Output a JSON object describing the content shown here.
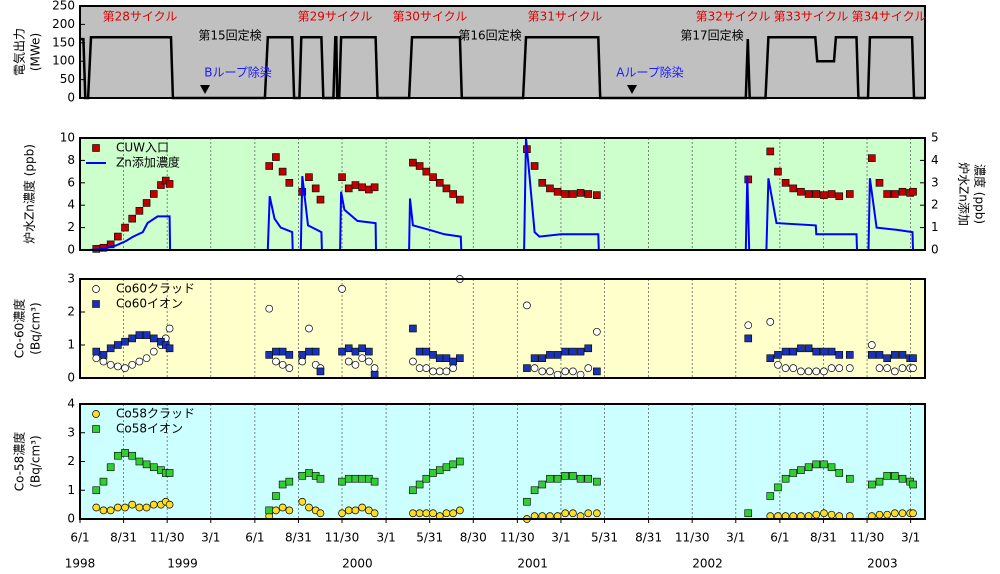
{
  "chart_data": [
    {
      "type": "line",
      "background": "#c0c0c0",
      "ylabel": [
        "電気出力",
        "(MWe)"
      ],
      "ylim": [
        0,
        250
      ],
      "yticks": [
        0,
        50,
        100,
        150,
        200,
        250
      ],
      "xlim": [
        "1998-06-01",
        "2003-03-31"
      ],
      "annotations": {
        "cycles": [
          "第28サイクル",
          "第29サイクル",
          "第30サイクル",
          "第31サイクル",
          "第32サイクル",
          "第33サイクル",
          "第34サイクル"
        ],
        "inspections": [
          "第15回定検",
          "第16回定検",
          "第17回定検"
        ],
        "decontamination": [
          "Bループ除染",
          "Aループ除染"
        ]
      },
      "x": [
        "1998-06-01",
        "1998-06-08",
        "1998-06-12",
        "1998-06-18",
        "1998-06-24",
        "1998-12-08",
        "1998-12-12",
        "1999-06-22",
        "1999-06-28",
        "1999-08-18",
        "1999-08-22",
        "1999-09-02",
        "1999-09-06",
        "1999-10-18",
        "1999-10-22",
        "1999-11-12",
        "1999-11-16",
        "1999-11-18",
        "1999-11-20",
        "1999-11-24",
        "1999-11-28",
        "2000-02-08",
        "2000-02-12",
        "2000-04-18",
        "2000-04-24",
        "2000-08-02",
        "2000-08-06",
        "2000-12-12",
        "2000-12-18",
        "2001-05-18",
        "2001-05-22",
        "2002-03-22",
        "2002-03-26",
        "2002-03-30",
        "2002-05-02",
        "2002-05-08",
        "2002-08-14",
        "2002-08-18",
        "2002-09-22",
        "2002-09-26",
        "2002-11-08",
        "2002-11-12",
        "2002-12-02",
        "2002-12-06",
        "2003-03-04",
        "2003-03-08",
        "2003-03-31"
      ],
      "series": [
        {
          "name": "電気出力",
          "color": "#000000",
          "marker": "line",
          "values": [
            160,
            160,
            0,
            0,
            165,
            165,
            0,
            0,
            165,
            165,
            0,
            0,
            165,
            165,
            0,
            0,
            165,
            165,
            0,
            0,
            165,
            165,
            0,
            0,
            165,
            165,
            0,
            0,
            165,
            165,
            0,
            0,
            160,
            0,
            0,
            165,
            165,
            100,
            100,
            165,
            165,
            0,
            0,
            165,
            165,
            0,
            0
          ]
        }
      ]
    },
    {
      "type": "scatter",
      "background": "#ccffcc",
      "ylabel": [
        "炉水Zn濃度 (ppb)"
      ],
      "y2label": [
        "炉水Zn添加",
        "濃度 (ppb)"
      ],
      "ylim": [
        0,
        10
      ],
      "yticks": [
        0,
        2,
        4,
        6,
        8,
        10
      ],
      "y2lim": [
        0,
        5
      ],
      "y2ticks": [
        0,
        1,
        2,
        3,
        4,
        5
      ],
      "xlim": [
        "1998-06-01",
        "2003-03-31"
      ],
      "grid": true,
      "legend": "upper left",
      "x": [
        "1998-07-05",
        "1998-07-20",
        "1998-08-04",
        "1998-08-19",
        "1998-09-03",
        "1998-09-18",
        "1998-10-03",
        "1998-10-18",
        "1998-11-02",
        "1998-11-17",
        "1998-11-27",
        "1998-12-05",
        "1999-07-01",
        "1999-07-15",
        "1999-07-29",
        "1999-08-12",
        "1999-09-08",
        "1999-09-22",
        "1999-10-06",
        "1999-10-16",
        "1999-11-30",
        "1999-12-14",
        "1999-12-28",
        "2000-01-11",
        "2000-01-25",
        "2000-02-06",
        "2000-04-26",
        "2000-05-10",
        "2000-05-24",
        "2000-06-07",
        "2000-06-21",
        "2000-07-05",
        "2000-07-19",
        "2000-08-02",
        "2000-12-20",
        "2001-01-05",
        "2001-01-21",
        "2001-02-06",
        "2001-02-22",
        "2001-03-10",
        "2001-03-26",
        "2001-04-11",
        "2001-04-27",
        "2001-05-15",
        "2002-03-27",
        "2002-05-12",
        "2002-05-28",
        "2002-06-13",
        "2002-06-29",
        "2002-07-15",
        "2002-07-31",
        "2002-08-16",
        "2002-09-01",
        "2002-09-17",
        "2002-10-03",
        "2002-10-25",
        "2002-12-10",
        "2002-12-26",
        "2003-01-11",
        "2003-01-27",
        "2003-02-12",
        "2003-02-28",
        "2003-03-06"
      ],
      "series": [
        {
          "name": "CUW入口",
          "color": "#c00000",
          "marker": "square",
          "values": [
            0.1,
            0.2,
            0.5,
            1.2,
            2.0,
            2.8,
            3.5,
            4.2,
            5.0,
            5.8,
            6.2,
            5.9,
            7.5,
            8.3,
            7.0,
            6.0,
            5.2,
            6.5,
            5.5,
            4.5,
            6.5,
            5.5,
            5.8,
            5.6,
            5.4,
            5.6,
            7.8,
            7.5,
            7.0,
            6.5,
            6.0,
            5.5,
            5.0,
            4.5,
            9.0,
            7.5,
            6.0,
            5.5,
            5.2,
            5.0,
            5.0,
            5.1,
            5.0,
            4.9,
            6.3,
            8.8,
            7.0,
            6.0,
            5.5,
            5.2,
            5.0,
            5.0,
            4.9,
            5.0,
            4.8,
            5.0,
            8.2,
            6.0,
            5.0,
            5.0,
            5.2,
            5.1,
            5.2
          ]
        },
        {
          "name": "Zn添加濃度",
          "color": "#0000ff",
          "marker": "line",
          "axis": "y2",
          "x": [
            "1998-06-20",
            "1998-07-20",
            "1998-08-15",
            "1998-09-05",
            "1998-09-20",
            "1998-10-10",
            "1998-10-20",
            "1998-11-10",
            "1998-12-05",
            "1998-12-06",
            "1999-06-28",
            "1999-07-02",
            "1999-07-12",
            "1999-07-25",
            "1999-08-18",
            "1999-08-19",
            "1999-09-05",
            "1999-09-08",
            "1999-09-20",
            "1999-10-18",
            "1999-10-19",
            "1999-11-26",
            "1999-11-28",
            "1999-12-05",
            "2000-01-01",
            "2000-02-08",
            "2000-02-09",
            "2000-04-18",
            "2000-04-20",
            "2000-04-26",
            "2000-05-30",
            "2000-07-01",
            "2000-08-04",
            "2000-08-05",
            "2000-12-14",
            "2000-12-18",
            "2001-01-05",
            "2001-01-15",
            "2001-03-01",
            "2001-05-18",
            "2001-05-19",
            "2002-03-22",
            "2002-03-25",
            "2002-03-29",
            "2002-05-04",
            "2002-05-08",
            "2002-05-25",
            "2002-08-15",
            "2002-08-16",
            "2002-11-08",
            "2002-11-09",
            "2002-12-03",
            "2002-12-06",
            "2002-12-20",
            "2003-01-30",
            "2003-03-05",
            "2003-03-06"
          ],
          "values": [
            0,
            0.05,
            0.2,
            0.4,
            0.6,
            0.8,
            1.2,
            1.5,
            1.5,
            0,
            0,
            2.4,
            1.4,
            1.0,
            0.8,
            0,
            0,
            3.3,
            1.1,
            0.8,
            0,
            0,
            2.6,
            1.8,
            1.3,
            1.2,
            0,
            0,
            2.3,
            1.1,
            0.9,
            0.7,
            0.6,
            0,
            0,
            5.0,
            0.8,
            0.6,
            0.7,
            0.7,
            0,
            0,
            3.3,
            0,
            0,
            3.2,
            1.2,
            1.1,
            0.7,
            0.7,
            0,
            0,
            3.2,
            1.0,
            0.9,
            0.8,
            0
          ]
        }
      ]
    },
    {
      "type": "scatter",
      "background": "#ffffcc",
      "ylabel": [
        "Co-60濃度",
        "(Bq/cm³)"
      ],
      "ylim": [
        0,
        3
      ],
      "yticks": [
        0,
        1,
        2,
        3
      ],
      "xlim": [
        "1998-06-01",
        "2003-03-31"
      ],
      "grid": true,
      "legend": "upper left",
      "x": [
        "1998-07-05",
        "1998-07-20",
        "1998-08-04",
        "1998-08-19",
        "1998-09-03",
        "1998-09-18",
        "1998-10-03",
        "1998-10-18",
        "1998-11-02",
        "1998-11-17",
        "1998-11-27",
        "1998-12-05",
        "1999-07-01",
        "1999-07-15",
        "1999-07-29",
        "1999-08-12",
        "1999-09-08",
        "1999-09-22",
        "1999-10-06",
        "1999-10-16",
        "1999-11-30",
        "1999-12-14",
        "1999-12-28",
        "2000-01-11",
        "2000-01-25",
        "2000-02-06",
        "2000-04-26",
        "2000-05-10",
        "2000-05-24",
        "2000-06-07",
        "2000-06-21",
        "2000-07-05",
        "2000-07-19",
        "2000-08-02",
        "2000-12-20",
        "2001-01-05",
        "2001-01-21",
        "2001-02-06",
        "2001-02-22",
        "2001-03-10",
        "2001-03-26",
        "2001-04-11",
        "2001-04-27",
        "2001-05-15",
        "2002-03-27",
        "2002-05-12",
        "2002-05-28",
        "2002-06-13",
        "2002-06-29",
        "2002-07-15",
        "2002-07-31",
        "2002-08-16",
        "2002-09-01",
        "2002-09-17",
        "2002-10-03",
        "2002-10-25",
        "2002-12-10",
        "2002-12-26",
        "2003-01-11",
        "2003-01-27",
        "2003-02-12",
        "2003-02-28",
        "2003-03-06"
      ],
      "series": [
        {
          "name": "Co60クラッド",
          "color": "#ffffff",
          "marker": "circle",
          "values": [
            0.6,
            0.5,
            0.4,
            0.35,
            0.3,
            0.4,
            0.5,
            0.6,
            0.8,
            1.0,
            1.2,
            1.5,
            2.1,
            0.5,
            0.4,
            0.3,
            0.5,
            1.5,
            0.4,
            0.3,
            2.7,
            0.5,
            0.4,
            0.6,
            0.5,
            0.3,
            0.5,
            0.3,
            0.3,
            0.2,
            0.2,
            0.2,
            0.3,
            3.0,
            2.2,
            0.3,
            0.2,
            0.2,
            0.1,
            0.2,
            0.2,
            0.1,
            0.3,
            1.4,
            1.6,
            1.7,
            0.4,
            0.3,
            0.3,
            0.2,
            0.2,
            0.2,
            0.2,
            0.3,
            0.3,
            0.3,
            1.0,
            0.3,
            0.3,
            0.2,
            0.3,
            0.3,
            0.3
          ]
        },
        {
          "name": "Co60イオン",
          "color": "#1a33b3",
          "marker": "square",
          "values": [
            0.8,
            0.7,
            0.9,
            1.0,
            1.1,
            1.2,
            1.3,
            1.3,
            1.2,
            1.1,
            1.0,
            0.9,
            0.7,
            0.8,
            0.8,
            0.7,
            0.7,
            0.8,
            0.8,
            0.2,
            0.8,
            0.9,
            0.8,
            0.9,
            0.8,
            0.1,
            1.5,
            0.8,
            0.8,
            0.7,
            0.6,
            0.6,
            0.5,
            0.6,
            0.3,
            0.6,
            0.6,
            0.7,
            0.7,
            0.8,
            0.8,
            0.8,
            0.9,
            0.2,
            1.2,
            0.6,
            0.7,
            0.8,
            0.8,
            0.9,
            0.9,
            0.8,
            0.8,
            0.8,
            0.7,
            0.7,
            0.7,
            0.7,
            0.6,
            0.7,
            0.7,
            0.6,
            0.6
          ]
        }
      ]
    },
    {
      "type": "scatter",
      "background": "#ccffff",
      "ylabel": [
        "Co-58濃度",
        "(Bq/cm³)"
      ],
      "ylim": [
        0,
        4
      ],
      "yticks": [
        0,
        1,
        2,
        3,
        4
      ],
      "xlim": [
        "1998-06-01",
        "2003-03-31"
      ],
      "grid": true,
      "legend": "upper left",
      "xticks": [
        {
          "value": "1998-06-01",
          "label": "6/1"
        },
        {
          "value": "1998-08-31",
          "label": "8/31"
        },
        {
          "value": "1998-11-30",
          "label": "11/30"
        },
        {
          "value": "1999-03-01",
          "label": "3/1"
        },
        {
          "value": "1999-06-01",
          "label": "6/1"
        },
        {
          "value": "1999-08-31",
          "label": "8/31"
        },
        {
          "value": "1999-11-30",
          "label": "11/30"
        },
        {
          "value": "2000-03-01",
          "label": "3/1"
        },
        {
          "value": "2000-05-31",
          "label": "5/31"
        },
        {
          "value": "2000-08-30",
          "label": "8/30"
        },
        {
          "value": "2000-11-30",
          "label": "11/30"
        },
        {
          "value": "2001-03-01",
          "label": "3/1"
        },
        {
          "value": "2001-05-31",
          "label": "5/31"
        },
        {
          "value": "2001-08-31",
          "label": "8/31"
        },
        {
          "value": "2001-11-30",
          "label": "11/30"
        },
        {
          "value": "2002-03-01",
          "label": "3/1"
        },
        {
          "value": "2002-06-01",
          "label": "6/1"
        },
        {
          "value": "2002-08-31",
          "label": "8/31"
        },
        {
          "value": "2002-11-30",
          "label": "11/30"
        },
        {
          "value": "2003-03-01",
          "label": "3/1"
        }
      ],
      "year_labels": [
        {
          "value": "1998-06-01",
          "label": "1998"
        },
        {
          "value": "1999-01-01",
          "label": "1999"
        },
        {
          "value": "2000-01-01",
          "label": "2000"
        },
        {
          "value": "2001-01-01",
          "label": "2001"
        },
        {
          "value": "2002-01-01",
          "label": "2002"
        },
        {
          "value": "2003-01-01",
          "label": "2003"
        }
      ],
      "x": [
        "1998-07-05",
        "1998-07-20",
        "1998-08-04",
        "1998-08-19",
        "1998-09-03",
        "1998-09-18",
        "1998-10-03",
        "1998-10-18",
        "1998-11-02",
        "1998-11-17",
        "1998-11-27",
        "1998-12-05",
        "1999-07-01",
        "1999-07-15",
        "1999-07-29",
        "1999-08-12",
        "1999-09-08",
        "1999-09-22",
        "1999-10-06",
        "1999-10-16",
        "1999-11-30",
        "1999-12-14",
        "1999-12-28",
        "2000-01-11",
        "2000-01-25",
        "2000-02-06",
        "2000-04-26",
        "2000-05-10",
        "2000-05-24",
        "2000-06-07",
        "2000-06-21",
        "2000-07-05",
        "2000-07-19",
        "2000-08-02",
        "2000-12-20",
        "2001-01-05",
        "2001-01-21",
        "2001-02-06",
        "2001-02-22",
        "2001-03-10",
        "2001-03-26",
        "2001-04-11",
        "2001-04-27",
        "2001-05-15",
        "2002-03-27",
        "2002-05-12",
        "2002-05-28",
        "2002-06-13",
        "2002-06-29",
        "2002-07-15",
        "2002-07-31",
        "2002-08-16",
        "2002-09-01",
        "2002-09-17",
        "2002-10-03",
        "2002-10-25",
        "2002-12-10",
        "2002-12-26",
        "2003-01-11",
        "2003-01-27",
        "2003-02-12",
        "2003-02-28",
        "2003-03-06"
      ],
      "series": [
        {
          "name": "Co58クラッド",
          "color": "#ffdd22",
          "marker": "circle",
          "values": [
            0.4,
            0.3,
            0.3,
            0.4,
            0.4,
            0.5,
            0.4,
            0.4,
            0.5,
            0.5,
            0.6,
            0.5,
            0.1,
            0.3,
            0.4,
            0.3,
            0.6,
            0.4,
            0.3,
            0.2,
            0.2,
            0.3,
            0.3,
            0.4,
            0.3,
            0.2,
            0.2,
            0.2,
            0.2,
            0.2,
            0.1,
            0.2,
            0.2,
            0.3,
            0.0,
            0.1,
            0.1,
            0.1,
            0.1,
            0.2,
            0.2,
            0.1,
            0.2,
            0.2,
            0.2,
            0.1,
            0.1,
            0.1,
            0.1,
            0.1,
            0.1,
            0.15,
            0.2,
            0.15,
            0.1,
            0.1,
            0.1,
            0.15,
            0.15,
            0.2,
            0.2,
            0.2,
            0.2
          ]
        },
        {
          "name": "Co58イオン",
          "color": "#33cc33",
          "marker": "square",
          "values": [
            1.0,
            1.3,
            1.8,
            2.2,
            2.3,
            2.2,
            2.0,
            1.9,
            1.8,
            1.7,
            1.6,
            1.6,
            0.3,
            0.8,
            1.2,
            1.3,
            1.5,
            1.6,
            1.5,
            1.4,
            1.3,
            1.4,
            1.4,
            1.4,
            1.4,
            1.3,
            1.0,
            1.2,
            1.4,
            1.6,
            1.7,
            1.8,
            1.9,
            2.0,
            0.6,
            1.0,
            1.2,
            1.4,
            1.4,
            1.5,
            1.5,
            1.4,
            1.4,
            1.3,
            0.2,
            0.8,
            1.1,
            1.4,
            1.6,
            1.7,
            1.8,
            1.9,
            1.9,
            1.8,
            1.6,
            1.4,
            1.2,
            1.3,
            1.5,
            1.5,
            1.4,
            1.3,
            1.2
          ]
        }
      ]
    }
  ]
}
